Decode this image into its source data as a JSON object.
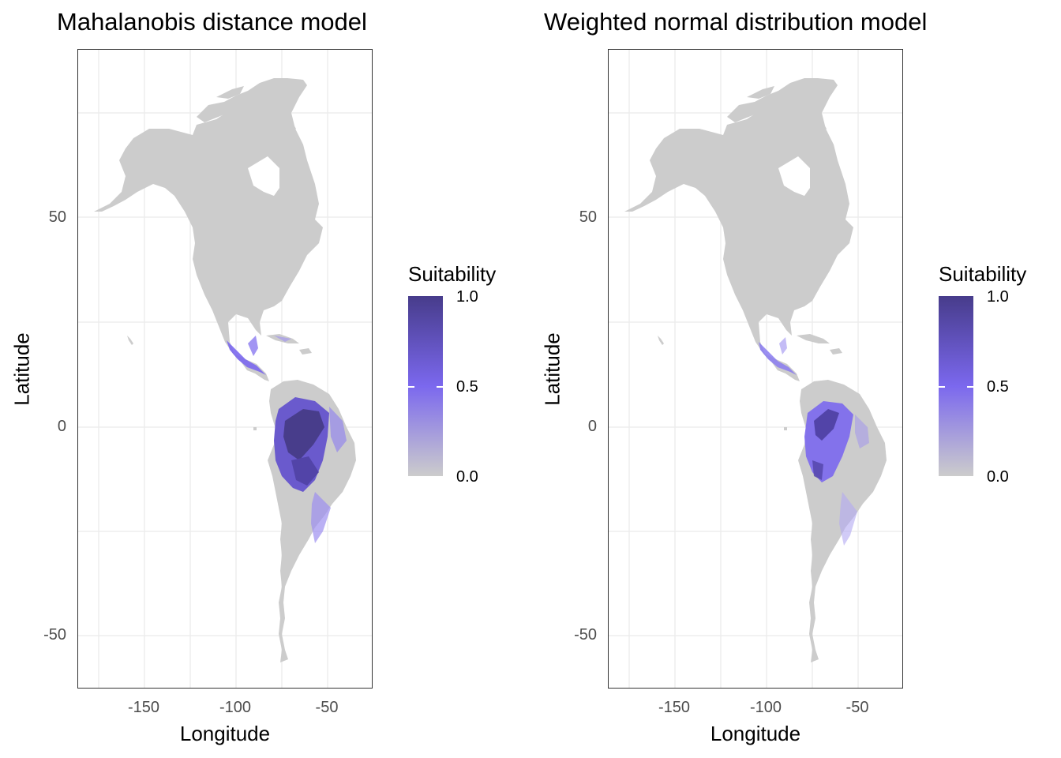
{
  "panels": [
    {
      "title": "Mahalanobis distance model",
      "xlabel": "Longitude",
      "ylabel": "Latitude",
      "xticks": [
        "-150",
        "-100",
        "-50"
      ],
      "yticks": [
        "50",
        "0",
        "-50"
      ]
    },
    {
      "title": "Weighted normal distribution model",
      "xlabel": "Longitude",
      "ylabel": "Latitude",
      "xticks": [
        "-150",
        "-100",
        "-50"
      ],
      "yticks": [
        "50",
        "0",
        "-50"
      ]
    }
  ],
  "legend": {
    "title": "Suitability",
    "labels": [
      "1.0",
      "0.5",
      "0.0"
    ],
    "colors": {
      "high": "#473c8b",
      "mid": "#7b68ee",
      "low": "#cccccc"
    }
  },
  "chart_data": [
    {
      "type": "heatmap",
      "title": "Mahalanobis distance model",
      "xlabel": "Longitude",
      "ylabel": "Latitude",
      "xlim": [
        -185,
        -25
      ],
      "ylim": [
        -62,
        91
      ],
      "xticks": [
        -150,
        -100,
        -50
      ],
      "yticks": [
        50,
        0,
        -50
      ],
      "grid": true,
      "value_range": [
        0,
        1
      ],
      "region": "Americas",
      "high_suitability_area": "Amazon basin / northern South America and Central America"
    },
    {
      "type": "heatmap",
      "title": "Weighted normal distribution model",
      "xlabel": "Longitude",
      "ylabel": "Latitude",
      "xlim": [
        -185,
        -25
      ],
      "ylim": [
        -62,
        91
      ],
      "xticks": [
        -150,
        -100,
        -50
      ],
      "yticks": [
        50,
        0,
        -50
      ],
      "grid": true,
      "value_range": [
        0,
        1
      ],
      "region": "Americas",
      "high_suitability_area": "Western Amazon basin and Central America"
    }
  ]
}
